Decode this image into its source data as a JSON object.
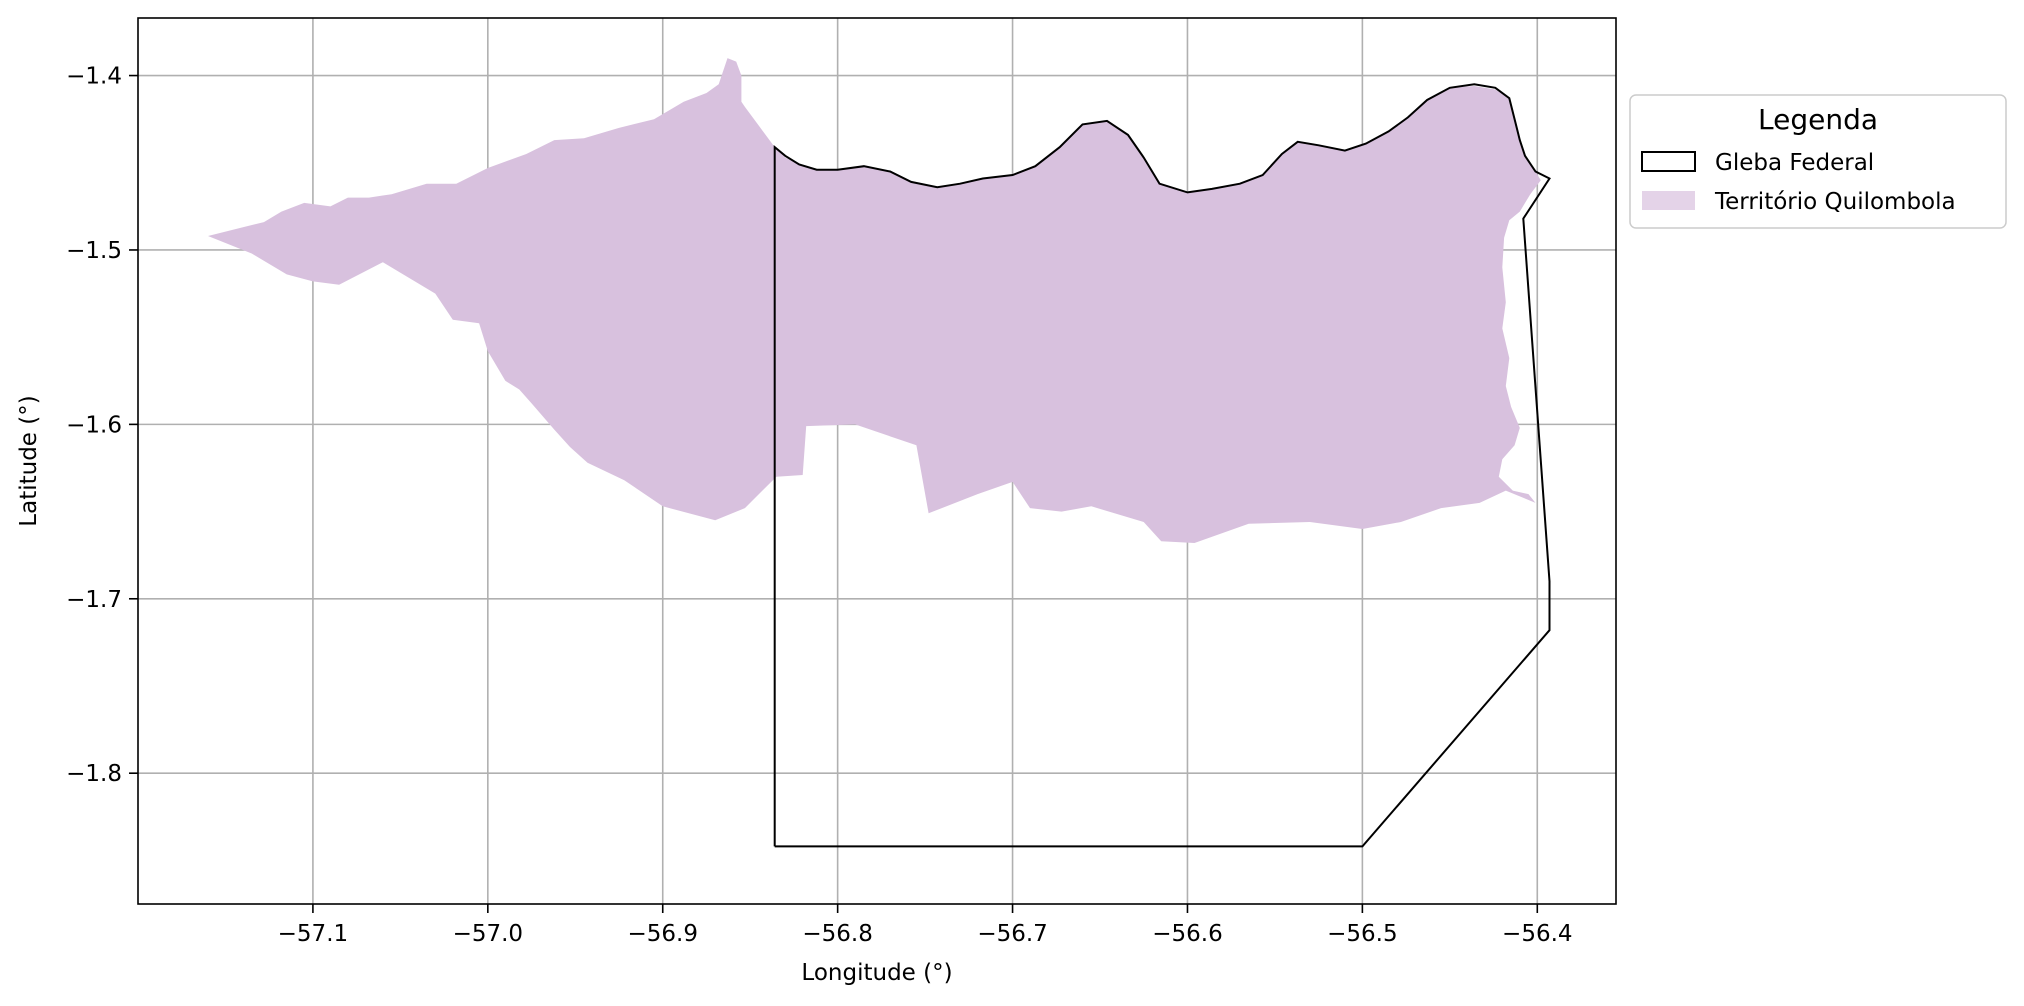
{
  "chart_data": {
    "type": "map",
    "xlabel": "Longitude (°)",
    "ylabel": "Latitude (°)",
    "xlim": [
      -57.2,
      -56.355
    ],
    "ylim": [
      -1.875,
      -1.367
    ],
    "grid": true,
    "x_ticks": [
      -57.1,
      -57.0,
      -56.9,
      -56.8,
      -56.7,
      -56.6,
      -56.5,
      -56.4
    ],
    "x_tick_labels": [
      "−57.1",
      "−57.0",
      "−56.9",
      "−56.8",
      "−56.7",
      "−56.6",
      "−56.5",
      "−56.4"
    ],
    "y_ticks": [
      -1.4,
      -1.5,
      -1.6,
      -1.7,
      -1.8
    ],
    "y_tick_labels": [
      "−1.4",
      "−1.5",
      "−1.6",
      "−1.7",
      "−1.8"
    ],
    "legend": {
      "title": "Legenda",
      "placement": "outside-right-top",
      "entries": [
        {
          "label": "Gleba Federal",
          "style": "outline",
          "color": "#000000"
        },
        {
          "label": "Território Quilombola",
          "style": "fill",
          "color": "#d8c1de"
        }
      ]
    },
    "layers": [
      {
        "name": "Território Quilombola",
        "type": "polygon",
        "fill": "#d8c1de",
        "coordinates": [
          [
            -57.16,
            -1.492
          ],
          [
            -57.14,
            -1.487
          ],
          [
            -57.128,
            -1.484
          ],
          [
            -57.118,
            -1.478
          ],
          [
            -57.105,
            -1.473
          ],
          [
            -57.09,
            -1.475
          ],
          [
            -57.08,
            -1.47
          ],
          [
            -57.068,
            -1.47
          ],
          [
            -57.055,
            -1.468
          ],
          [
            -57.035,
            -1.462
          ],
          [
            -57.018,
            -1.462
          ],
          [
            -57.0,
            -1.453
          ],
          [
            -56.978,
            -1.445
          ],
          [
            -56.962,
            -1.437
          ],
          [
            -56.945,
            -1.436
          ],
          [
            -56.925,
            -1.43
          ],
          [
            -56.905,
            -1.425
          ],
          [
            -56.888,
            -1.415
          ],
          [
            -56.875,
            -1.41
          ],
          [
            -56.868,
            -1.405
          ],
          [
            -56.863,
            -1.39
          ],
          [
            -56.858,
            -1.392
          ],
          [
            -56.855,
            -1.4
          ],
          [
            -56.855,
            -1.415
          ],
          [
            -56.853,
            -1.418
          ],
          [
            -56.836,
            -1.441
          ],
          [
            -56.83,
            -1.447
          ],
          [
            -56.822,
            -1.451
          ],
          [
            -56.812,
            -1.454
          ],
          [
            -56.8,
            -1.454
          ],
          [
            -56.785,
            -1.452
          ],
          [
            -56.77,
            -1.455
          ],
          [
            -56.758,
            -1.461
          ],
          [
            -56.743,
            -1.464
          ],
          [
            -56.73,
            -1.462
          ],
          [
            -56.717,
            -1.459
          ],
          [
            -56.7,
            -1.457
          ],
          [
            -56.687,
            -1.452
          ],
          [
            -56.673,
            -1.441
          ],
          [
            -56.66,
            -1.428
          ],
          [
            -56.646,
            -1.426
          ],
          [
            -56.634,
            -1.434
          ],
          [
            -56.625,
            -1.447
          ],
          [
            -56.616,
            -1.462
          ],
          [
            -56.6,
            -1.467
          ],
          [
            -56.586,
            -1.465
          ],
          [
            -56.57,
            -1.462
          ],
          [
            -56.557,
            -1.457
          ],
          [
            -56.546,
            -1.445
          ],
          [
            -56.537,
            -1.438
          ],
          [
            -56.525,
            -1.44
          ],
          [
            -56.51,
            -1.443
          ],
          [
            -56.498,
            -1.439
          ],
          [
            -56.485,
            -1.432
          ],
          [
            -56.474,
            -1.424
          ],
          [
            -56.463,
            -1.414
          ],
          [
            -56.45,
            -1.407
          ],
          [
            -56.436,
            -1.406
          ],
          [
            -56.424,
            -1.408
          ],
          [
            -56.416,
            -1.413
          ],
          [
            -56.413,
            -1.425
          ],
          [
            -56.41,
            -1.437
          ],
          [
            -56.407,
            -1.446
          ],
          [
            -56.401,
            -1.455
          ],
          [
            -56.398,
            -1.46
          ],
          [
            -56.404,
            -1.468
          ],
          [
            -56.41,
            -1.478
          ],
          [
            -56.416,
            -1.483
          ],
          [
            -56.419,
            -1.493
          ],
          [
            -56.42,
            -1.51
          ],
          [
            -56.418,
            -1.53
          ],
          [
            -56.42,
            -1.545
          ],
          [
            -56.416,
            -1.562
          ],
          [
            -56.418,
            -1.578
          ],
          [
            -56.415,
            -1.59
          ],
          [
            -56.41,
            -1.602
          ],
          [
            -56.413,
            -1.612
          ],
          [
            -56.42,
            -1.62
          ],
          [
            -56.422,
            -1.63
          ],
          [
            -56.414,
            -1.638
          ],
          [
            -56.405,
            -1.64
          ],
          [
            -56.401,
            -1.645
          ],
          [
            -56.418,
            -1.638
          ],
          [
            -56.433,
            -1.645
          ],
          [
            -56.455,
            -1.648
          ],
          [
            -56.478,
            -1.656
          ],
          [
            -56.5,
            -1.66
          ],
          [
            -56.53,
            -1.656
          ],
          [
            -56.565,
            -1.657
          ],
          [
            -56.596,
            -1.668
          ],
          [
            -56.615,
            -1.667
          ],
          [
            -56.625,
            -1.656
          ],
          [
            -56.655,
            -1.647
          ],
          [
            -56.672,
            -1.65
          ],
          [
            -56.69,
            -1.648
          ],
          [
            -56.7,
            -1.633
          ],
          [
            -56.72,
            -1.64
          ],
          [
            -56.748,
            -1.651
          ],
          [
            -56.755,
            -1.612
          ],
          [
            -56.79,
            -1.6
          ],
          [
            -56.818,
            -1.601
          ],
          [
            -56.82,
            -1.629
          ],
          [
            -56.835,
            -1.63
          ],
          [
            -56.853,
            -1.648
          ],
          [
            -56.87,
            -1.655
          ],
          [
            -56.9,
            -1.647
          ],
          [
            -56.922,
            -1.632
          ],
          [
            -56.943,
            -1.622
          ],
          [
            -56.953,
            -1.613
          ],
          [
            -56.962,
            -1.603
          ],
          [
            -56.975,
            -1.588
          ],
          [
            -56.982,
            -1.58
          ],
          [
            -56.99,
            -1.575
          ],
          [
            -57.0,
            -1.558
          ],
          [
            -57.005,
            -1.542
          ],
          [
            -57.02,
            -1.54
          ],
          [
            -57.03,
            -1.525
          ],
          [
            -57.06,
            -1.507
          ],
          [
            -57.085,
            -1.52
          ],
          [
            -57.1,
            -1.518
          ],
          [
            -57.115,
            -1.514
          ],
          [
            -57.135,
            -1.502
          ],
          [
            -57.16,
            -1.492
          ]
        ]
      },
      {
        "name": "Gleba Federal",
        "type": "polyline",
        "stroke": "#000000",
        "coordinates": [
          [
            -56.836,
            -1.842
          ],
          [
            -56.836,
            -1.441
          ],
          [
            -56.83,
            -1.446
          ],
          [
            -56.822,
            -1.451
          ],
          [
            -56.812,
            -1.454
          ],
          [
            -56.8,
            -1.454
          ],
          [
            -56.785,
            -1.452
          ],
          [
            -56.77,
            -1.455
          ],
          [
            -56.758,
            -1.461
          ],
          [
            -56.743,
            -1.464
          ],
          [
            -56.73,
            -1.462
          ],
          [
            -56.717,
            -1.459
          ],
          [
            -56.7,
            -1.457
          ],
          [
            -56.687,
            -1.452
          ],
          [
            -56.673,
            -1.441
          ],
          [
            -56.66,
            -1.428
          ],
          [
            -56.646,
            -1.426
          ],
          [
            -56.634,
            -1.434
          ],
          [
            -56.625,
            -1.447
          ],
          [
            -56.616,
            -1.462
          ],
          [
            -56.6,
            -1.467
          ],
          [
            -56.586,
            -1.465
          ],
          [
            -56.57,
            -1.462
          ],
          [
            -56.557,
            -1.457
          ],
          [
            -56.546,
            -1.445
          ],
          [
            -56.537,
            -1.438
          ],
          [
            -56.525,
            -1.44
          ],
          [
            -56.51,
            -1.443
          ],
          [
            -56.498,
            -1.439
          ],
          [
            -56.485,
            -1.432
          ],
          [
            -56.474,
            -1.424
          ],
          [
            -56.463,
            -1.414
          ],
          [
            -56.45,
            -1.407
          ],
          [
            -56.436,
            -1.405
          ],
          [
            -56.424,
            -1.407
          ],
          [
            -56.416,
            -1.413
          ],
          [
            -56.413,
            -1.425
          ],
          [
            -56.41,
            -1.437
          ],
          [
            -56.407,
            -1.446
          ],
          [
            -56.401,
            -1.455
          ],
          [
            -56.393,
            -1.459
          ],
          [
            -56.408,
            -1.482
          ],
          [
            -56.393,
            -1.69
          ],
          [
            -56.393,
            -1.718
          ],
          [
            -56.5,
            -1.842
          ],
          [
            -56.836,
            -1.842
          ]
        ]
      }
    ]
  }
}
